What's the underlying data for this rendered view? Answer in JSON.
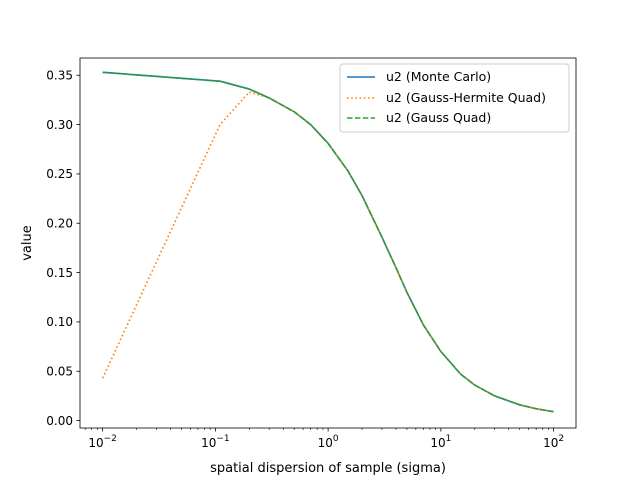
{
  "chart_data": {
    "type": "line",
    "title": "",
    "xlabel": "spatial dispersion of sample (sigma)",
    "ylabel": "value",
    "xscale": "log",
    "xlim": [
      0.0063,
      158
    ],
    "ylim": [
      -0.0075,
      0.3675
    ],
    "grid": false,
    "legend_position": "top-right",
    "x_ticks": [
      {
        "value": 0.01,
        "base": "10",
        "exp": "−2"
      },
      {
        "value": 0.1,
        "base": "10",
        "exp": "−1"
      },
      {
        "value": 1,
        "base": "10",
        "exp": "0"
      },
      {
        "value": 10,
        "base": "10",
        "exp": "1"
      },
      {
        "value": 100,
        "base": "10",
        "exp": "2"
      }
    ],
    "y_ticks": [
      {
        "value": 0.0,
        "label": "0.00"
      },
      {
        "value": 0.05,
        "label": "0.05"
      },
      {
        "value": 0.1,
        "label": "0.10"
      },
      {
        "value": 0.15,
        "label": "0.15"
      },
      {
        "value": 0.2,
        "label": "0.20"
      },
      {
        "value": 0.25,
        "label": "0.25"
      },
      {
        "value": 0.3,
        "label": "0.30"
      },
      {
        "value": 0.35,
        "label": "0.35"
      }
    ],
    "series": [
      {
        "name": "u2 (Monte Carlo)",
        "color": "#1f77b4",
        "dash": "solid",
        "x": [
          0.01,
          0.11,
          0.2,
          0.3,
          0.5,
          0.7,
          1,
          1.5,
          2,
          3,
          4,
          5,
          7,
          10,
          15,
          20,
          30,
          50,
          70,
          100
        ],
        "y": [
          0.353,
          0.344,
          0.336,
          0.327,
          0.313,
          0.3,
          0.281,
          0.253,
          0.228,
          0.186,
          0.155,
          0.13,
          0.097,
          0.07,
          0.047,
          0.036,
          0.025,
          0.016,
          0.012,
          0.009
        ]
      },
      {
        "name": "u2 (Gauss-Hermite Quad)",
        "color": "#ff7f0e",
        "dash": "dotted",
        "x": [
          0.01,
          0.11,
          0.2,
          0.3,
          0.5,
          0.7,
          1,
          1.5,
          2,
          3,
          4,
          5,
          7,
          10,
          15,
          20,
          30,
          50,
          70,
          100
        ],
        "y": [
          0.043,
          0.3,
          0.333,
          0.327,
          0.313,
          0.3,
          0.281,
          0.253,
          0.228,
          0.186,
          0.155,
          0.13,
          0.097,
          0.07,
          0.047,
          0.036,
          0.025,
          0.016,
          0.012,
          0.009
        ]
      },
      {
        "name": "u2 (Gauss Quad)",
        "color": "#2ca02c",
        "dash": "dashed",
        "x": [
          0.01,
          0.11,
          0.2,
          0.3,
          0.5,
          0.7,
          1,
          1.5,
          2,
          3,
          4,
          5,
          7,
          10,
          15,
          20,
          30,
          50,
          70,
          100
        ],
        "y": [
          0.353,
          0.344,
          0.336,
          0.327,
          0.313,
          0.3,
          0.281,
          0.253,
          0.228,
          0.186,
          0.155,
          0.13,
          0.097,
          0.07,
          0.047,
          0.036,
          0.025,
          0.016,
          0.012,
          0.009
        ]
      }
    ]
  }
}
